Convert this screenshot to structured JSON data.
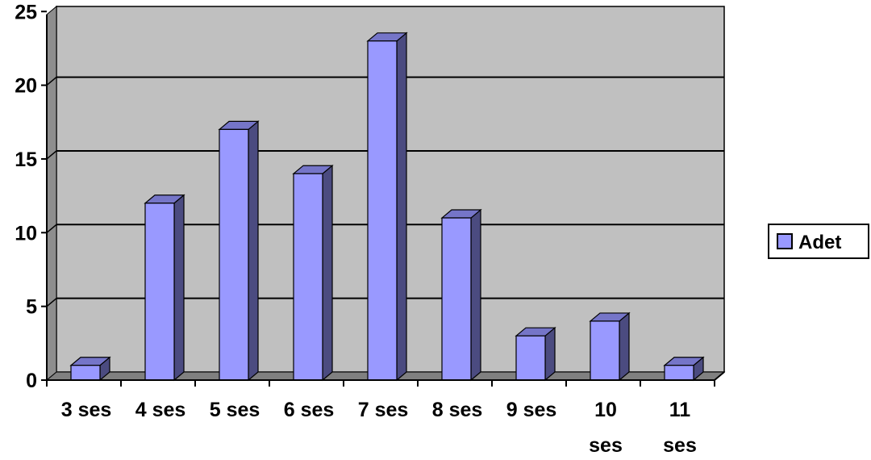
{
  "chart_data": {
    "type": "bar",
    "categories": [
      [
        "3 ses"
      ],
      [
        "4 ses"
      ],
      [
        "5 ses"
      ],
      [
        "6 ses"
      ],
      [
        "7 ses"
      ],
      [
        "8 ses"
      ],
      [
        "9 ses"
      ],
      [
        "10",
        "ses"
      ],
      [
        "11",
        "ses"
      ]
    ],
    "series": [
      {
        "name": "Adet",
        "values": [
          1,
          12,
          17,
          14,
          23,
          11,
          3,
          4,
          1
        ]
      }
    ],
    "y_ticks": [
      "0",
      "5",
      "10",
      "15",
      "20",
      "25"
    ],
    "ylim": [
      0,
      25
    ],
    "grid": true,
    "legend_position": "right",
    "colors": {
      "bar_front": "#9999ff",
      "bar_side": "#4b4b80",
      "bar_top": "#7575c8",
      "plot_back": "#c0c0c0",
      "plot_floor": "#808080",
      "plot_side_wall": "#8e8e8e"
    }
  }
}
